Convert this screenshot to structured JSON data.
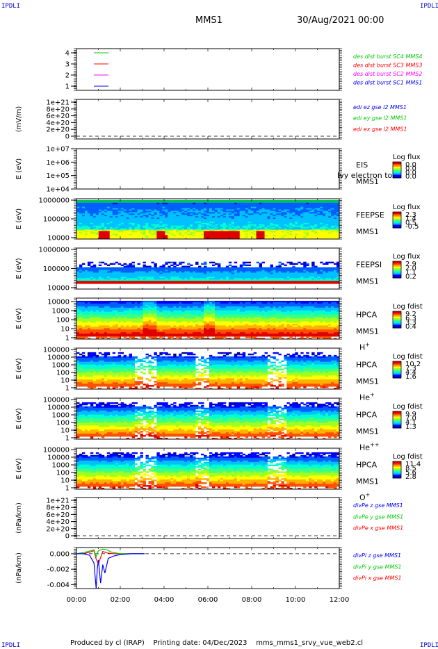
{
  "corner_label": "IPDLI",
  "header": {
    "spacecraft": "MMS1",
    "date": "30/Aug/2021 00:00"
  },
  "footer": {
    "producer": "Produced by cl (IRAP)",
    "printing": "Printing date: 04/Dec/2023",
    "file": "mms_mms1_srvy_vue_web2.cl"
  },
  "chart_data": [
    {
      "panel": "spacecraft-flags",
      "type": "line",
      "yticks": [
        "1",
        "2",
        "3",
        "4"
      ],
      "series": [
        {
          "name": "des dist burst SC1 MMS1",
          "color": "#0000ff",
          "y": 1
        },
        {
          "name": "des dist burst SC2 MMS2",
          "color": "#ff00ff",
          "y": 2
        },
        {
          "name": "des dist burst SC3 MMS3",
          "color": "#ff0000",
          "y": 3
        },
        {
          "name": "des dist burst SC4 MMS4",
          "color": "#00cc00",
          "y": 4
        }
      ]
    },
    {
      "panel": "edi-e-field",
      "type": "line",
      "ylabel": "(mV/m)",
      "yticks": [
        "0",
        "2e+20",
        "4e+20",
        "6e+20",
        "8e+20",
        "1e+21"
      ],
      "series": [
        {
          "name": "edi ex gse l2 MMS1",
          "color": "#ff0000"
        },
        {
          "name": "edi ey gse l2 MMS1",
          "color": "#00cc00"
        },
        {
          "name": "edi ez gse l2 MMS1",
          "color": "#0000ff"
        }
      ]
    },
    {
      "panel": "eis",
      "type": "heatmap",
      "ylabel": "E (eV)",
      "yscale": "log",
      "yticks": [
        "1e+04",
        "1e+05",
        "1e+06",
        "1e+07"
      ],
      "instrument": [
        "EIS",
        "MMS1"
      ],
      "overlay_text": "Ivy electron to",
      "colorbar": {
        "title": "Log flux",
        "labels": [
          "0.0",
          "0.0",
          "0.0",
          "0.0"
        ]
      }
    },
    {
      "panel": "feeps-electron",
      "type": "heatmap",
      "ylabel": "E (eV)",
      "yscale": "log",
      "yticks": [
        "10000",
        "100000",
        "1000000"
      ],
      "instrument": [
        "FEEPSE",
        "MMS1"
      ],
      "colorbar": {
        "title": "Log flux",
        "labels": [
          "2.3",
          "1.4",
          "0.5",
          "-0.5"
        ]
      }
    },
    {
      "panel": "feeps-ion",
      "type": "heatmap",
      "ylabel": "E (eV)",
      "yscale": "log",
      "yticks": [
        "10000",
        "100000",
        "1000000"
      ],
      "instrument": [
        "FEEPSI",
        "MMS1"
      ],
      "colorbar": {
        "title": "Log flux",
        "labels": [
          "2.9",
          "2.0",
          "1.1",
          "0.2"
        ]
      }
    },
    {
      "panel": "hpca-h",
      "type": "heatmap",
      "ylabel": "E (eV)",
      "yscale": "log",
      "yticks": [
        "1",
        "10",
        "100",
        "1000",
        "10000"
      ],
      "instrument": [
        "HPCA",
        "MMS1"
      ],
      "species": "H",
      "charge": "+",
      "colorbar": {
        "title": "Log fdist",
        "labels": [
          "9.2",
          "6.3",
          "3.3",
          "0.4"
        ]
      }
    },
    {
      "panel": "hpca-he",
      "type": "heatmap",
      "ylabel": "E (eV)",
      "yscale": "log",
      "yticks": [
        "1",
        "10",
        "100",
        "1000",
        "10000",
        "100000"
      ],
      "instrument": [
        "HPCA",
        "MMS1"
      ],
      "species": "He",
      "charge": "+",
      "colorbar": {
        "title": "Log fdist",
        "labels": [
          "10.2",
          "7.3",
          "4.4",
          "1.6"
        ]
      }
    },
    {
      "panel": "hpca-he2",
      "type": "heatmap",
      "ylabel": "E (eV)",
      "yscale": "log",
      "yticks": [
        "1",
        "10",
        "100",
        "1000",
        "10000",
        "100000"
      ],
      "instrument": [
        "HPCA",
        "MMS1"
      ],
      "species": "He",
      "charge": "++",
      "colorbar": {
        "title": "Log fdist",
        "labels": [
          "9.9",
          "7.0",
          "4.1",
          "1.3"
        ]
      }
    },
    {
      "panel": "hpca-o",
      "type": "heatmap",
      "ylabel": "E (eV)",
      "yscale": "log",
      "yticks": [
        "1",
        "10",
        "100",
        "1000",
        "10000",
        "100000"
      ],
      "instrument": [
        "HPCA",
        "MMS1"
      ],
      "species": "O",
      "charge": "+",
      "colorbar": {
        "title": "Log fdist",
        "labels": [
          "11.4",
          "8.5",
          "5.6",
          "2.8"
        ]
      }
    },
    {
      "panel": "div-pe",
      "type": "line",
      "ylabel": "(nPa/km)",
      "yticks": [
        "0",
        "2e+20",
        "4e+20",
        "6e+20",
        "8e+20",
        "1e+21"
      ],
      "series": [
        {
          "name": "divPe x gse MMS1",
          "color": "#ff0000"
        },
        {
          "name": "divPe y gse MMS1",
          "color": "#00cc00"
        },
        {
          "name": "divPe z gse MMS1",
          "color": "#0000ff"
        }
      ]
    },
    {
      "panel": "div-pi",
      "type": "line",
      "ylabel": "(nPa/km)",
      "yticks": [
        "-0.004",
        "-0.002",
        "0.000"
      ],
      "ylim": [
        -0.0045,
        0.0008
      ],
      "series": [
        {
          "name": "divPi x gse MMS1",
          "color": "#ff0000",
          "points": [
            [
              0.0,
              0.0
            ],
            [
              0.3,
              0.0
            ],
            [
              0.6,
              0.0002
            ],
            [
              0.8,
              0.0004
            ],
            [
              0.9,
              -0.0007
            ],
            [
              1.0,
              -0.0013
            ],
            [
              1.1,
              -0.0005
            ],
            [
              1.2,
              0.0003
            ],
            [
              1.4,
              0.0001
            ],
            [
              1.7,
              0.0
            ],
            [
              2.0,
              0.0
            ],
            [
              2.5,
              0.0
            ],
            [
              3.1,
              0.0
            ]
          ]
        },
        {
          "name": "divPi y gse MMS1",
          "color": "#00cc00",
          "points": [
            [
              0.0,
              0.0
            ],
            [
              0.4,
              0.0002
            ],
            [
              0.8,
              0.0005
            ],
            [
              0.9,
              -0.0004
            ],
            [
              1.0,
              0.0004
            ],
            [
              1.2,
              0.0006
            ],
            [
              1.4,
              0.0005
            ],
            [
              1.6,
              0.0002
            ],
            [
              2.0,
              0.0
            ],
            [
              2.5,
              0.0
            ],
            [
              3.1,
              0.0
            ]
          ]
        },
        {
          "name": "divPi z gse MMS1",
          "color": "#0000ff",
          "points": [
            [
              0.0,
              0.0
            ],
            [
              0.3,
              0.0
            ],
            [
              0.6,
              -0.0002
            ],
            [
              0.8,
              -0.0012
            ],
            [
              0.9,
              -0.0045
            ],
            [
              0.95,
              -0.002
            ],
            [
              1.0,
              -0.0008
            ],
            [
              1.1,
              -0.0038
            ],
            [
              1.2,
              -0.0014
            ],
            [
              1.3,
              -0.0025
            ],
            [
              1.45,
              -0.0006
            ],
            [
              1.7,
              -0.0003
            ],
            [
              2.0,
              -0.0001
            ],
            [
              2.5,
              0.0
            ],
            [
              3.1,
              0.0
            ]
          ]
        }
      ]
    }
  ],
  "xaxis": {
    "labels": [
      "00:00",
      "02:00",
      "04:00",
      "06:00",
      "08:00",
      "10:00",
      "12:00"
    ],
    "range_hours": [
      0,
      12
    ]
  }
}
